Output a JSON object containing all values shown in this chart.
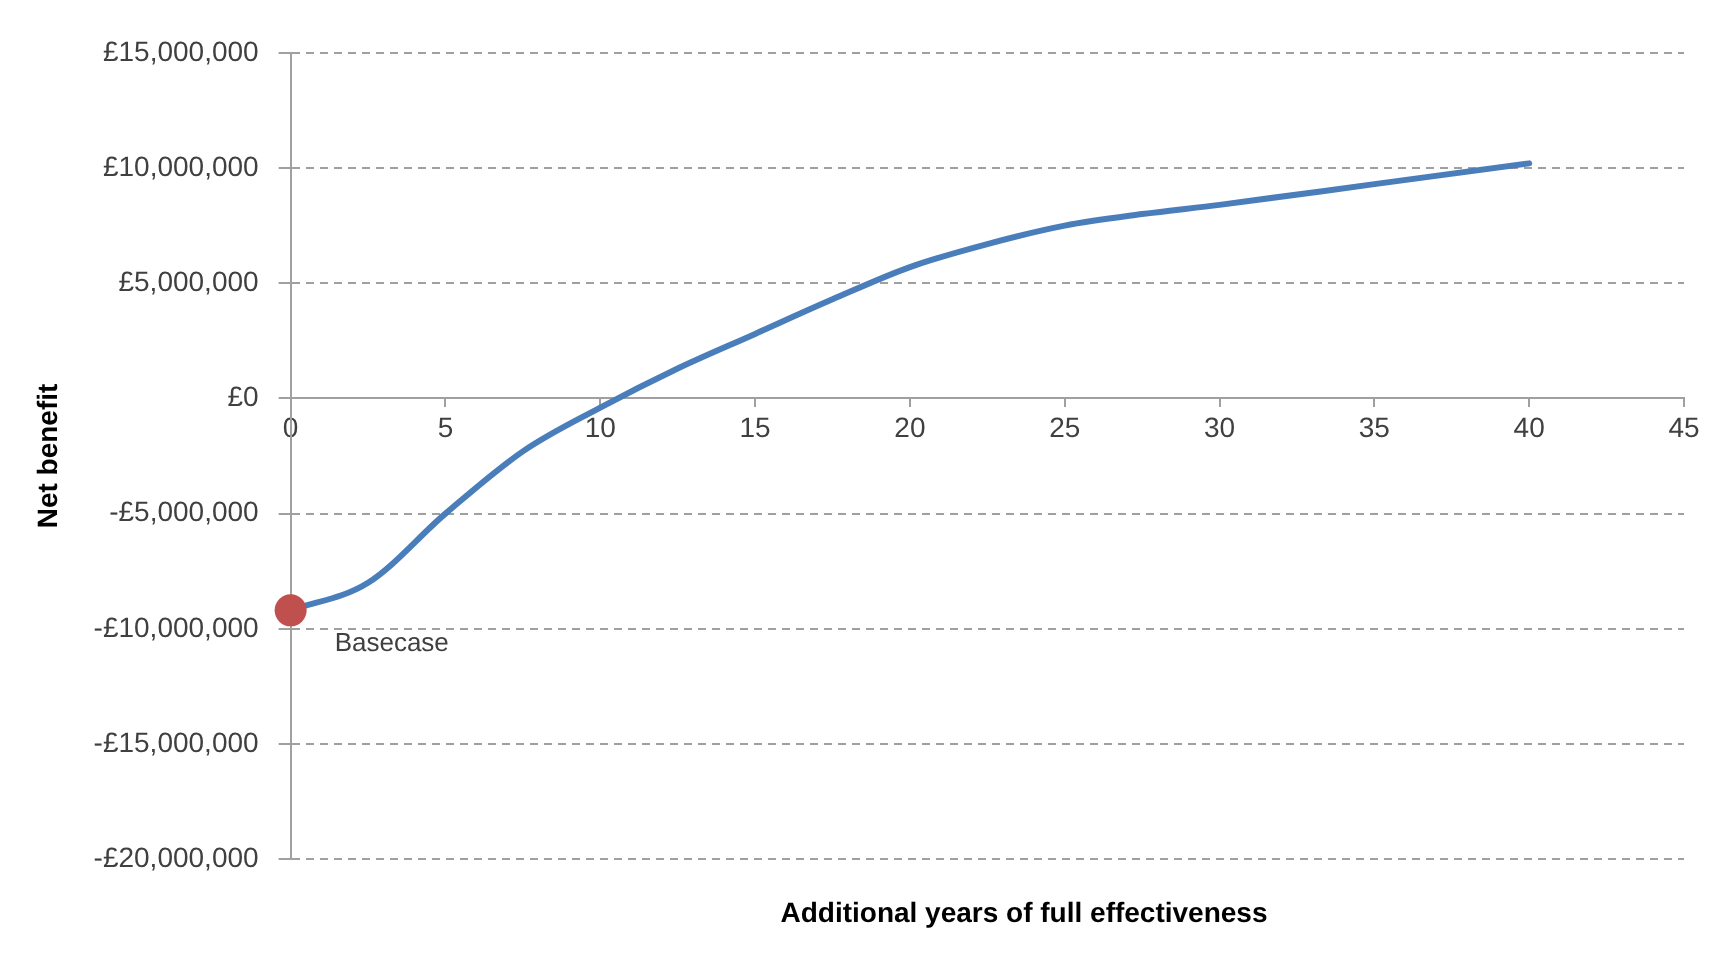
{
  "chart_data": {
    "type": "line",
    "xlabel": "Additional  years of full effectiveness",
    "ylabel": "Net benefit",
    "xlim": [
      0,
      45
    ],
    "xticks": [
      0,
      5,
      10,
      15,
      20,
      25,
      30,
      35,
      40,
      45
    ],
    "ylim": [
      -20000000,
      15000000
    ],
    "yticks": [
      {
        "value": -20000000,
        "label": "-£20,000,000"
      },
      {
        "value": -15000000,
        "label": "-£15,000,000"
      },
      {
        "value": -10000000,
        "label": "-£10,000,000"
      },
      {
        "value": -5000000,
        "label": "-£5,000,000"
      },
      {
        "value": 0,
        "label": "£0"
      },
      {
        "value": 5000000,
        "label": "£5,000,000"
      },
      {
        "value": 10000000,
        "label": "£10,000,000"
      },
      {
        "value": 15000000,
        "label": "£15,000,000"
      }
    ],
    "grid": "y",
    "legend": false,
    "marker": "none",
    "line_style": "solid",
    "series": [
      {
        "color": "#4a7ebb",
        "x": [
          0,
          2.5,
          5,
          7.5,
          10,
          12.5,
          15,
          17.5,
          20,
          22.5,
          25,
          27.5,
          30,
          35,
          40
        ],
        "values": [
          -9200000,
          -8000000,
          -5000000,
          -2300000,
          -400000,
          1300000,
          2800000,
          4300000,
          5700000,
          6700000,
          7500000,
          8000000,
          8400000,
          9300000,
          10200000
        ]
      },
      {
        "type": "scatter",
        "marker": "circle",
        "color": "#c0504d",
        "x": [
          0
        ],
        "values": [
          -9200000
        ]
      }
    ],
    "annotations": [
      {
        "text": "Basecase",
        "x": 0,
        "y": -9200000
      }
    ]
  }
}
